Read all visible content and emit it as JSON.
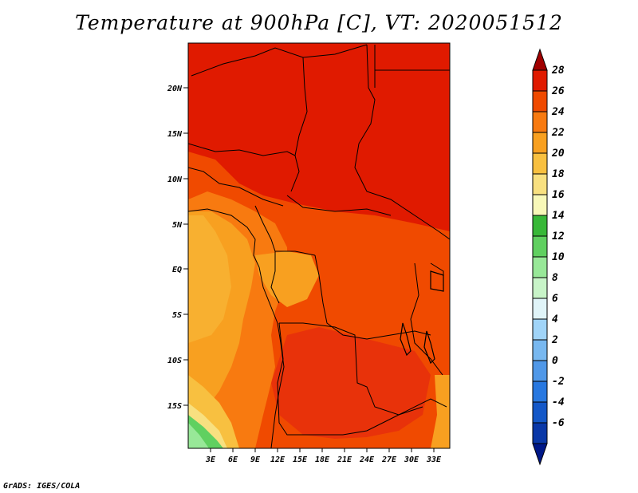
{
  "title": "Temperature at 900hPa [C], VT: 2020051512",
  "footer": "GrADS: IGES/COLA",
  "map": {
    "region": "Central Africa",
    "lon_labels": [
      "3E",
      "6E",
      "9E",
      "12E",
      "15E",
      "18E",
      "21E",
      "24E",
      "27E",
      "30E",
      "33E"
    ],
    "lat_labels": [
      "20N",
      "15N",
      "10N",
      "5N",
      "EQ",
      "5S",
      "10S",
      "15S"
    ]
  },
  "colorbar": {
    "labels": [
      "28",
      "26",
      "24",
      "22",
      "20",
      "18",
      "16",
      "14",
      "12",
      "10",
      "8",
      "6",
      "4",
      "2",
      "0",
      "-2",
      "-4",
      "-6"
    ],
    "colors": [
      "#a00000",
      "#e01a00",
      "#f04a00",
      "#f87a10",
      "#f8a020",
      "#f8c040",
      "#f8e080",
      "#f8f8b8",
      "#38b838",
      "#60d060",
      "#98e898",
      "#c8f4c8",
      "#e0f4f8",
      "#a0d4f8",
      "#78b8f0",
      "#5098e8",
      "#2878e0",
      "#1458c8",
      "#0a38a8",
      "#001888"
    ]
  },
  "colors": {
    "hot": "#e01a00",
    "warm": "#f04a00",
    "mid": "#f87a10",
    "cool": "#f8a020",
    "light": "#f8c040",
    "pale": "#f8e080",
    "green": "#60d060"
  }
}
